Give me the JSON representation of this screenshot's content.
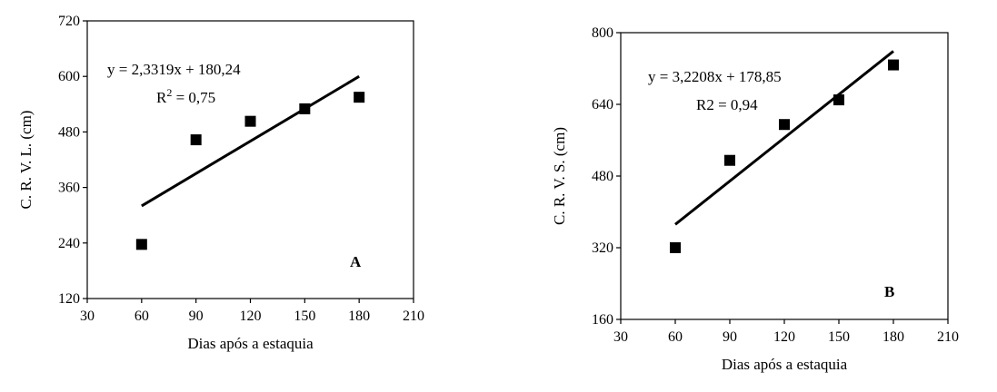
{
  "chart_data": [
    {
      "type": "scatter",
      "panel_label": "A",
      "xlabel": "Dias após a estaquia",
      "ylabel": "C. R. V. L. (cm)",
      "xlim": [
        30,
        210
      ],
      "ylim": [
        120,
        720
      ],
      "xticks": [
        30,
        60,
        90,
        120,
        150,
        180,
        210
      ],
      "yticks": [
        120,
        240,
        360,
        480,
        600,
        720
      ],
      "points": [
        {
          "x": 60,
          "y": 237
        },
        {
          "x": 90,
          "y": 463
        },
        {
          "x": 120,
          "y": 503
        },
        {
          "x": 150,
          "y": 530
        },
        {
          "x": 180,
          "y": 555
        }
      ],
      "trendline": {
        "slope": 2.3319,
        "intercept": 180.24,
        "x_range": [
          60,
          180
        ]
      },
      "equation_text": "y = 2,3319x + 180,24",
      "r2_label": "R",
      "r2_sup": "2",
      "r2_value_text": " = 0,75",
      "grid": false,
      "legend": "none"
    },
    {
      "type": "scatter",
      "panel_label": "B",
      "xlabel": "Dias após a estaquia",
      "ylabel": "C. R. V. S. (cm)",
      "xlim": [
        30,
        210
      ],
      "ylim": [
        160,
        800
      ],
      "xticks": [
        30,
        60,
        90,
        120,
        150,
        180,
        210
      ],
      "yticks": [
        160,
        320,
        480,
        640,
        800
      ],
      "points": [
        {
          "x": 60,
          "y": 320
        },
        {
          "x": 90,
          "y": 515
        },
        {
          "x": 120,
          "y": 595
        },
        {
          "x": 150,
          "y": 650
        },
        {
          "x": 180,
          "y": 728
        }
      ],
      "trendline": {
        "slope": 3.2208,
        "intercept": 178.85,
        "x_range": [
          60,
          180
        ]
      },
      "equation_text": "y = 3,2208x + 178,85",
      "r2_label": "R2",
      "r2_sup": "",
      "r2_value_text": " = 0,94",
      "grid": false,
      "legend": "none"
    }
  ]
}
